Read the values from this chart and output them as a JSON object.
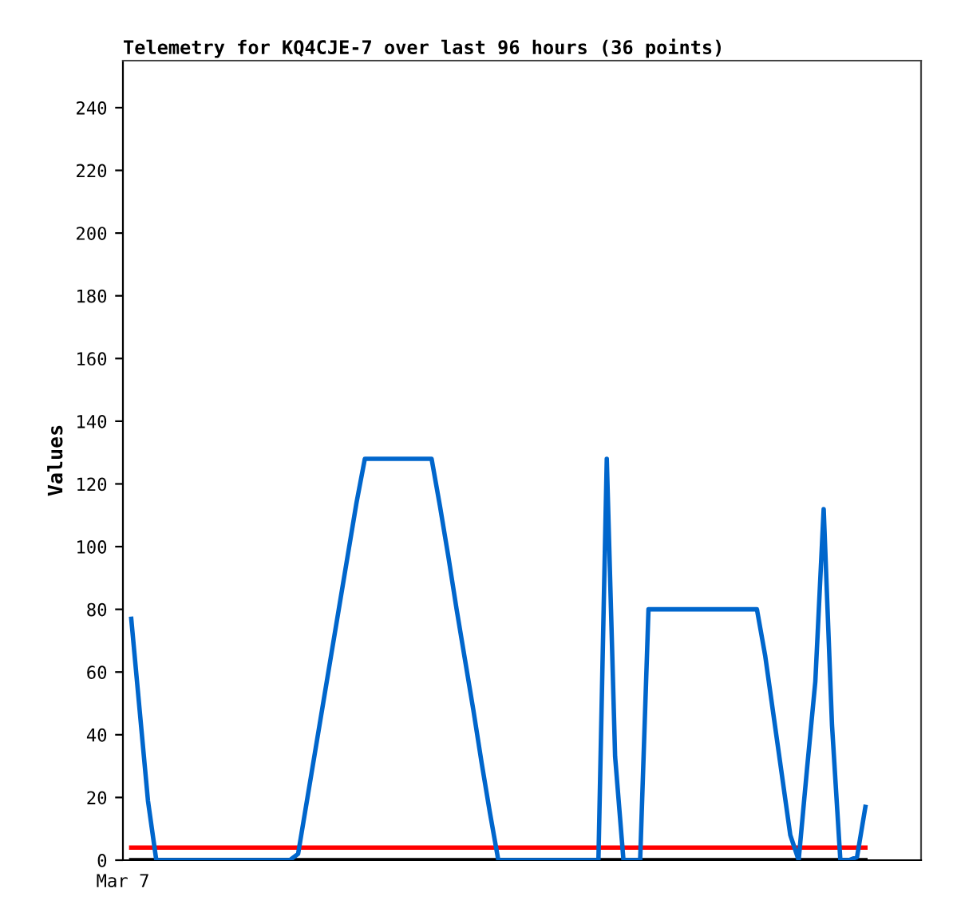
{
  "chart_data": {
    "type": "line",
    "title": "Telemetry for KQ4CJE-7 over last 96 hours (36 points)",
    "ylabel": "Values",
    "categories": [
      "Mar 7",
      null,
      null,
      null,
      null,
      null,
      null,
      null,
      null,
      null,
      null,
      null,
      null,
      null,
      null,
      null,
      null,
      null,
      null,
      null,
      null,
      null,
      null,
      null,
      null,
      null,
      null,
      null,
      null,
      null,
      null,
      null,
      null,
      null,
      null,
      null,
      null,
      null,
      null,
      null,
      null,
      null,
      null,
      null,
      null,
      null,
      null,
      null,
      null,
      null,
      null,
      null,
      null,
      null,
      null,
      null,
      null,
      null,
      null,
      null,
      null,
      null,
      null,
      null,
      null,
      null,
      null,
      null,
      null,
      null,
      null,
      null,
      null,
      null,
      null,
      null,
      null,
      null,
      null,
      null,
      null,
      null,
      null,
      null,
      null,
      null,
      null,
      null,
      null,
      null
    ],
    "series": [
      {
        "color": "#0066cc",
        "values": [
          null,
          77,
          48,
          19,
          0,
          0,
          0,
          0,
          0,
          0,
          0,
          0,
          0,
          0,
          0,
          0,
          0,
          0,
          0,
          0,
          0,
          2,
          18,
          34,
          50,
          66,
          82,
          98,
          114,
          128,
          128,
          128,
          128,
          128,
          128,
          128,
          128,
          128,
          113,
          97,
          80,
          64,
          48,
          31,
          15,
          0,
          0,
          0,
          0,
          0,
          0,
          0,
          0,
          0,
          0,
          0,
          0,
          0,
          128,
          33,
          0,
          0,
          0,
          80,
          80,
          80,
          80,
          80,
          80,
          80,
          80,
          80,
          80,
          80,
          80,
          80,
          80,
          65,
          46,
          27,
          8,
          0,
          29,
          57,
          112,
          43,
          0,
          0,
          1,
          17
        ]
      }
    ],
    "ref_lines": [
      {
        "axis": "y",
        "value": 0,
        "color": "#000000"
      },
      {
        "axis": "y",
        "value": 4,
        "color": "#ff0000"
      }
    ],
    "ylim": [
      0,
      255
    ],
    "yticks": [
      0,
      20,
      40,
      60,
      80,
      100,
      120,
      140,
      160,
      180,
      200,
      220,
      240
    ],
    "grid": false,
    "marker": "none",
    "line_style": "solid"
  }
}
